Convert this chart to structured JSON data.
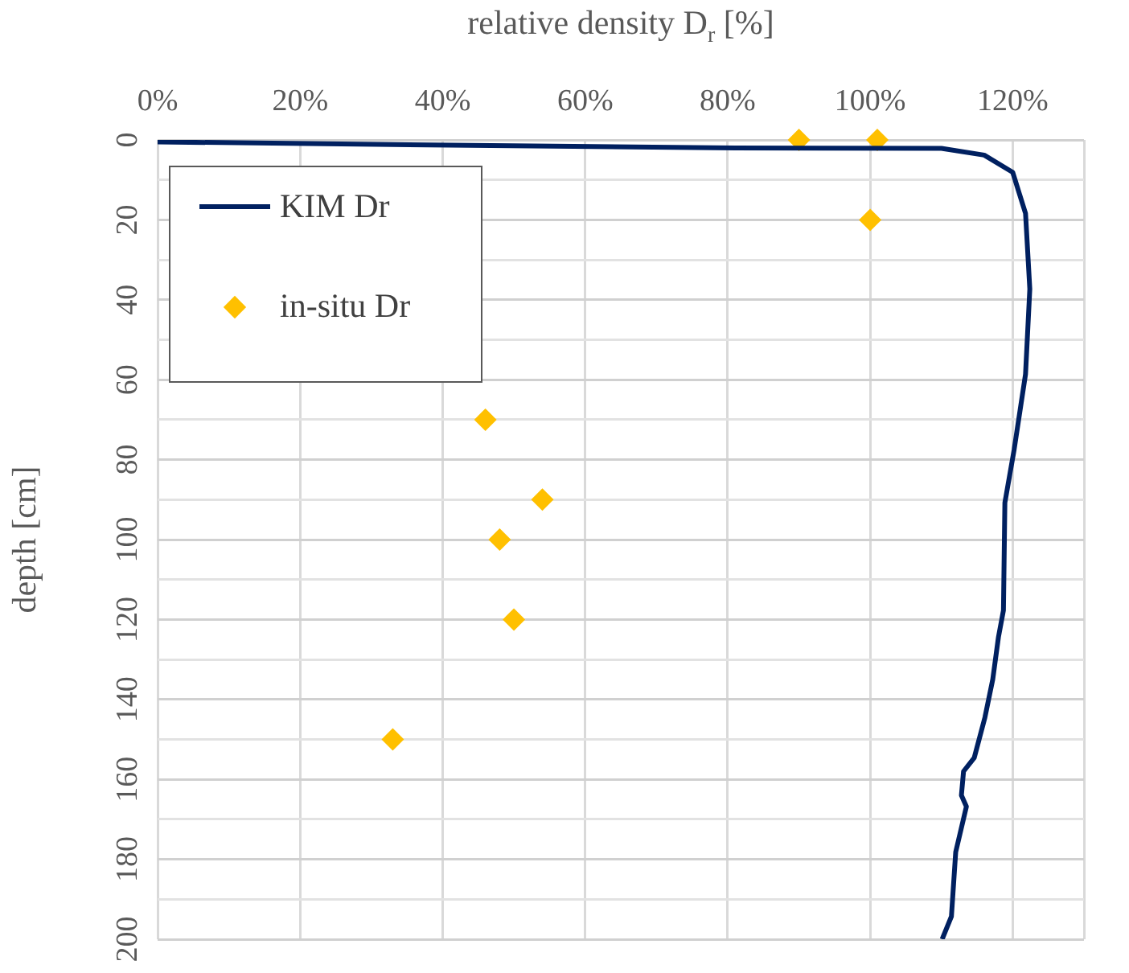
{
  "chart_data": {
    "type": "line",
    "xlabel": "relative density D$_{r}$ [%]",
    "ylabel": "depth [cm]",
    "xlim": [
      0,
      130
    ],
    "xticks": [
      {
        "value": 0,
        "label": "0%"
      },
      {
        "value": 20,
        "label": "20%"
      },
      {
        "value": 40,
        "label": "40%"
      },
      {
        "value": 60,
        "label": "60%"
      },
      {
        "value": 80,
        "label": "80%"
      },
      {
        "value": 100,
        "label": "100%"
      },
      {
        "value": 120,
        "label": "120%"
      },
      {
        "value": 130,
        "label": null
      }
    ],
    "ylim": [
      200,
      0
    ],
    "yticks": [
      0,
      {
        "value": 10,
        "label": null
      },
      20,
      {
        "value": 30,
        "label": null
      },
      40,
      {
        "value": 50,
        "label": null
      },
      60,
      {
        "value": 70,
        "label": null
      },
      80,
      {
        "value": 90,
        "label": null
      },
      100,
      {
        "value": 110,
        "label": null
      },
      120,
      {
        "value": 130,
        "label": null
      },
      140,
      {
        "value": 150,
        "label": null
      },
      160,
      {
        "value": 170,
        "label": null
      },
      180,
      {
        "value": 190,
        "label": null
      },
      200
    ],
    "grid": true,
    "legend": "top left",
    "series": [
      {
        "name": "KIM Dr",
        "type": "line",
        "color": "#002060",
        "marker": "none",
        "x": [
          0,
          41,
          81,
          110,
          116,
          120,
          121.8,
          122.4,
          121.8,
          120.2,
          118.9,
          118.7,
          118,
          117.2,
          116.1,
          114.6,
          113.1,
          112.8,
          113.5,
          112,
          111.4,
          110.1
        ],
        "values": [
          0.5,
          1.3,
          2,
          2.1,
          3.8,
          8.1,
          18.4,
          37.3,
          58.6,
          77.5,
          90.8,
          117.7,
          124.4,
          135,
          144.5,
          154.6,
          158,
          164,
          166.8,
          178.2,
          194.3,
          200
        ]
      },
      {
        "name": "in-situ Dr",
        "type": "scatter",
        "color": "#ffc000",
        "marker": "diamond",
        "x": [
          90,
          101,
          100,
          46,
          54,
          48,
          50,
          33
        ],
        "values": [
          0,
          0,
          20,
          70,
          90,
          100,
          120,
          150
        ]
      }
    ]
  }
}
